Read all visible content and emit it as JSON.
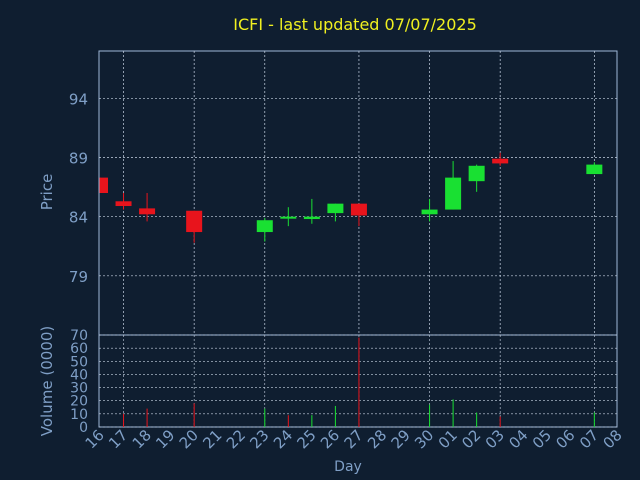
{
  "chart_data": {
    "type": "candlestick",
    "title": "ICFI - last updated 07/07/2025",
    "xlabel": "Day",
    "days": [
      "16",
      "17",
      "18",
      "19",
      "20",
      "21",
      "22",
      "23",
      "24",
      "25",
      "26",
      "27",
      "28",
      "29",
      "30",
      "01",
      "02",
      "03",
      "04",
      "05",
      "06",
      "07",
      "08"
    ],
    "price_panel": {
      "ylabel": "Price",
      "yticks": [
        79,
        84,
        89,
        94
      ],
      "ylim": [
        74,
        98
      ],
      "candles": [
        {
          "day": "16",
          "open": 87.3,
          "high": 87.3,
          "low": 86.0,
          "close": 86.0
        },
        {
          "day": "17",
          "open": 85.3,
          "high": 86.0,
          "low": 84.6,
          "close": 84.9
        },
        {
          "day": "18",
          "open": 84.7,
          "high": 86.0,
          "low": 83.6,
          "close": 84.2
        },
        {
          "day": "20",
          "open": 84.5,
          "high": 84.5,
          "low": 81.8,
          "close": 82.7
        },
        {
          "day": "23",
          "open": 82.7,
          "high": 83.9,
          "low": 81.9,
          "close": 83.7
        },
        {
          "day": "24",
          "open": 84.0,
          "high": 84.8,
          "low": 83.2,
          "close": 84.0
        },
        {
          "day": "25",
          "open": 83.8,
          "high": 85.5,
          "low": 83.4,
          "close": 84.0
        },
        {
          "day": "26",
          "open": 84.3,
          "high": 85.1,
          "low": 83.6,
          "close": 85.1
        },
        {
          "day": "27",
          "open": 85.1,
          "high": 85.1,
          "low": 83.2,
          "close": 84.1
        },
        {
          "day": "30",
          "open": 84.2,
          "high": 85.5,
          "low": 83.6,
          "close": 84.6
        },
        {
          "day": "01",
          "open": 84.6,
          "high": 88.7,
          "low": 84.6,
          "close": 87.3
        },
        {
          "day": "02",
          "open": 87.0,
          "high": 88.4,
          "low": 86.1,
          "close": 88.3
        },
        {
          "day": "03",
          "open": 88.9,
          "high": 89.4,
          "low": 88.3,
          "close": 88.5
        },
        {
          "day": "07",
          "open": 87.6,
          "high": 88.6,
          "low": 87.6,
          "close": 88.4
        }
      ]
    },
    "volume_panel": {
      "ylabel": "Volume (0000)",
      "yticks": [
        0,
        10,
        20,
        30,
        40,
        50,
        60,
        70
      ],
      "ylim": [
        0,
        70
      ],
      "bars": [
        {
          "day": "17",
          "value": 10,
          "color": "#e8141c"
        },
        {
          "day": "18",
          "value": 14,
          "color": "#e8141c"
        },
        {
          "day": "20",
          "value": 18,
          "color": "#e8141c"
        },
        {
          "day": "23",
          "value": 14,
          "color": "#19e032"
        },
        {
          "day": "24",
          "value": 9,
          "color": "#e8141c"
        },
        {
          "day": "25",
          "value": 9,
          "color": "#19e032"
        },
        {
          "day": "26",
          "value": 16,
          "color": "#19e032"
        },
        {
          "day": "27",
          "value": 68,
          "color": "#e8141c"
        },
        {
          "day": "30",
          "value": 17,
          "color": "#19e032"
        },
        {
          "day": "01",
          "value": 21,
          "color": "#19e032"
        },
        {
          "day": "02",
          "value": 11,
          "color": "#19e032"
        },
        {
          "day": "03",
          "value": 8,
          "color": "#e8141c"
        },
        {
          "day": "07",
          "value": 11,
          "color": "#19e032"
        }
      ]
    },
    "grid": true,
    "colors": {
      "up": "#19e032",
      "down": "#e8141c",
      "background": "#0f1e30",
      "axis_text": "#7f9fc6",
      "title": "#f0f020",
      "frame": "#9fb8d8"
    }
  }
}
